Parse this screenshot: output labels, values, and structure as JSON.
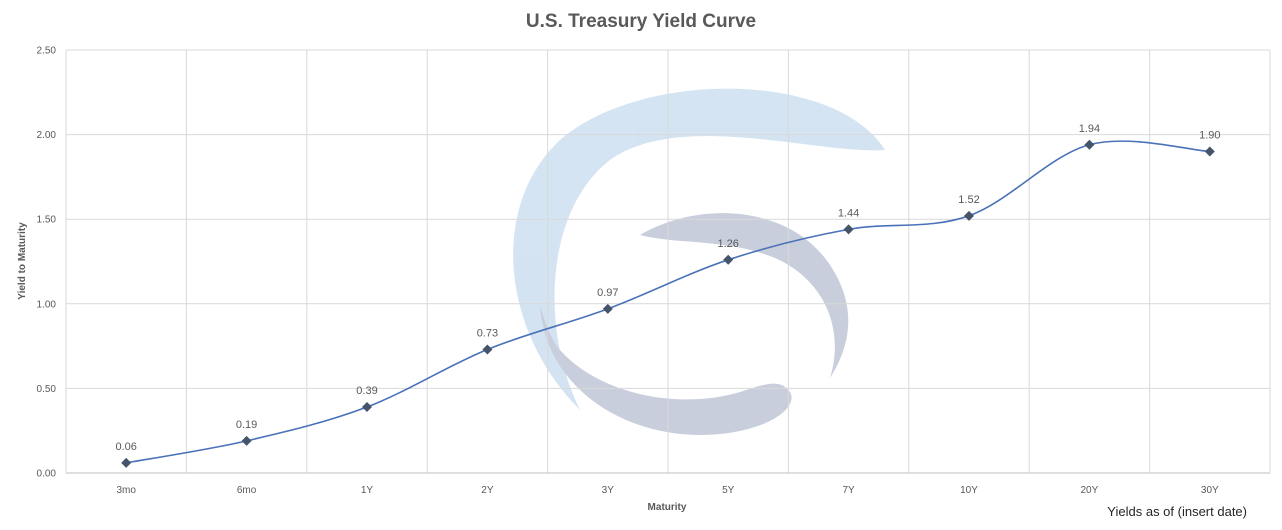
{
  "chart_data": {
    "type": "line",
    "title": "U.S. Treasury Yield Curve",
    "xlabel": "Maturity",
    "ylabel": "Yield to Maturity",
    "categories": [
      "3mo",
      "6mo",
      "1Y",
      "2Y",
      "3Y",
      "5Y",
      "7Y",
      "10Y",
      "20Y",
      "30Y"
    ],
    "series": [
      {
        "values": [
          0.06,
          0.19,
          0.39,
          0.73,
          0.97,
          1.26,
          1.44,
          1.52,
          1.94,
          1.9
        ],
        "data_labels": [
          "0.06",
          "0.19",
          "0.39",
          "0.73",
          "0.97",
          "1.26",
          "1.44",
          "1.52",
          "1.94",
          "1.90"
        ]
      }
    ],
    "ylim": [
      0,
      2.5
    ],
    "yticks": [
      "0.00",
      "0.50",
      "1.00",
      "1.50",
      "2.00",
      "2.50"
    ],
    "grid": true,
    "legend": "none",
    "line_color": "#4a72b8",
    "marker_color": "#44546a",
    "marker_shape": "diamond",
    "note": "Yields as of (insert date)",
    "watermark": "logo-swirl-watermark"
  }
}
